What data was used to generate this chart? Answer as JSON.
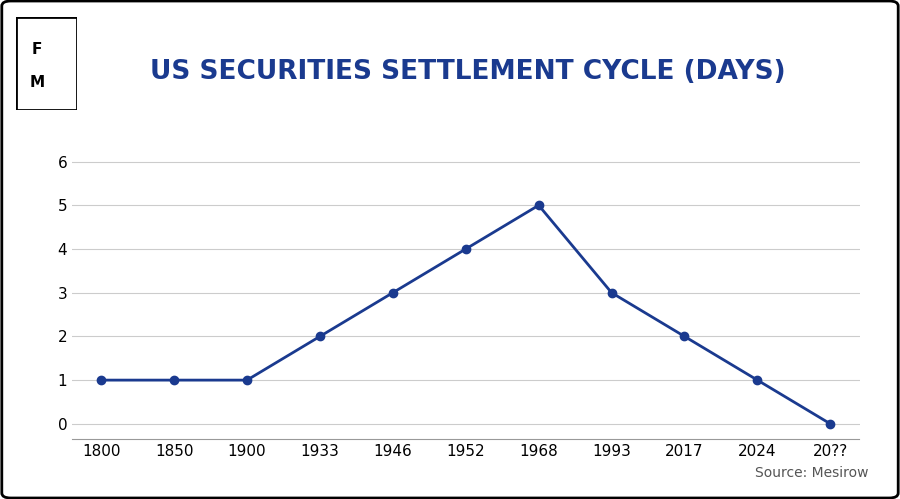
{
  "title": "US SECURITIES SETTLEMENT CYCLE (DAYS)",
  "title_color": "#1a3a8f",
  "title_fontsize": 19,
  "x_labels": [
    "1800",
    "1850",
    "1900",
    "1933",
    "1946",
    "1952",
    "1968",
    "1993",
    "2017",
    "2024",
    "20??"
  ],
  "x_values": [
    0,
    1,
    2,
    3,
    4,
    5,
    6,
    7,
    8,
    9,
    10
  ],
  "y_values": [
    1,
    1,
    1,
    2,
    3,
    4,
    5,
    3,
    2,
    1,
    0
  ],
  "line_color": "#1a3a8f",
  "marker": "o",
  "marker_size": 6,
  "line_width": 2.0,
  "ylim": [
    -0.35,
    6.5
  ],
  "yticks": [
    0,
    1,
    2,
    3,
    4,
    5,
    6
  ],
  "grid_color": "#cccccc",
  "grid_linewidth": 0.8,
  "background_color": "#ffffff",
  "outer_border_color": "#000000",
  "source_text": "Source: Mesirow",
  "source_fontsize": 10,
  "logo_text_line1": "F",
  "logo_text_line2": "M",
  "logo_fontsize": 11,
  "logo_box_color": "#ffffff",
  "logo_border_color": "#000000",
  "tick_fontsize": 11
}
